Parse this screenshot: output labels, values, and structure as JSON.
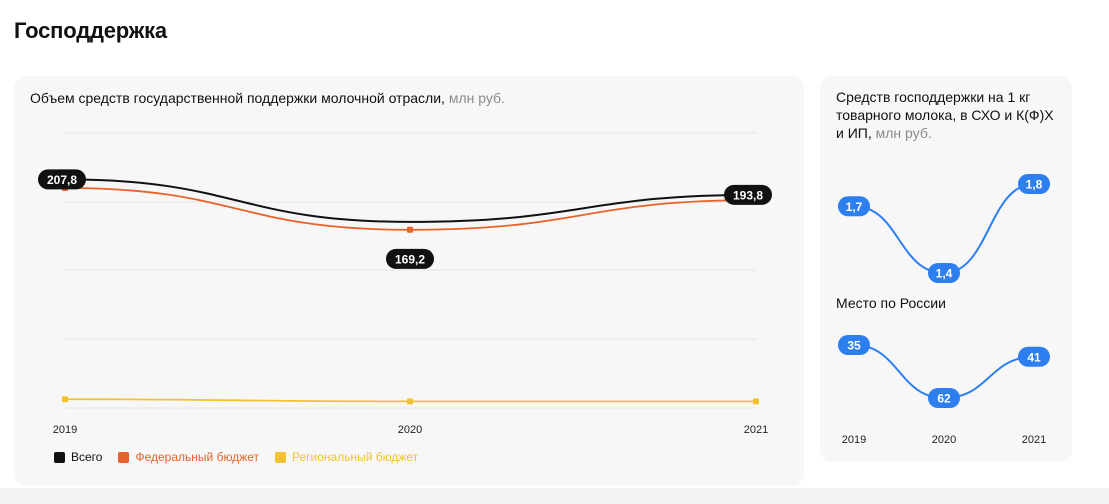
{
  "page": {
    "title": "Господдержка"
  },
  "main_card": {
    "title": "Объем средств государственной поддержки молочной отрасли,",
    "unit": "млн руб."
  },
  "side_card": {
    "title1": "Средств господдержки на 1 кг товарного молока, в СХО и К(Ф)Х и ИП,",
    "unit1": "млн руб.",
    "title2": "Место по России"
  },
  "colors": {
    "total": "#111111",
    "federal": "#e8622b",
    "regional": "#f2c230",
    "side_line": "#2d7ff0"
  },
  "chart_data": [
    {
      "type": "line",
      "title": "Объем средств государственной поддержки молочной отрасли, млн руб.",
      "categories": [
        "2019",
        "2020",
        "2021"
      ],
      "series": [
        {
          "name": "Всего",
          "values": [
            207.8,
            169.2,
            193.8
          ],
          "labels": [
            "207,8",
            "169,2",
            "193,8"
          ],
          "color": "#111111"
        },
        {
          "name": "Федеральный бюджет",
          "values": [
            200,
            162,
            189
          ],
          "color": "#e8622b"
        },
        {
          "name": "Региональный бюджет",
          "values": [
            8,
            6,
            6
          ],
          "color": "#f2c230"
        }
      ],
      "ylim": [
        0,
        250
      ],
      "grid": true,
      "legend": "bottom-left"
    },
    {
      "type": "line",
      "title": "Средств господдержки на 1 кг товарного молока, в СХО и К(Ф)Х и ИП, млн руб.",
      "categories": [
        "2019",
        "2020",
        "2021"
      ],
      "series": [
        {
          "values": [
            1.7,
            1.4,
            1.8
          ],
          "labels": [
            "1,7",
            "1,4",
            "1,8"
          ]
        }
      ],
      "ylim": [
        1.4,
        1.8
      ]
    },
    {
      "type": "line",
      "title": "Место по России",
      "categories": [
        "2019",
        "2020",
        "2021"
      ],
      "series": [
        {
          "values": [
            35,
            62,
            41
          ],
          "labels": [
            "35",
            "62",
            "41"
          ]
        }
      ],
      "inverted_y": true
    }
  ]
}
